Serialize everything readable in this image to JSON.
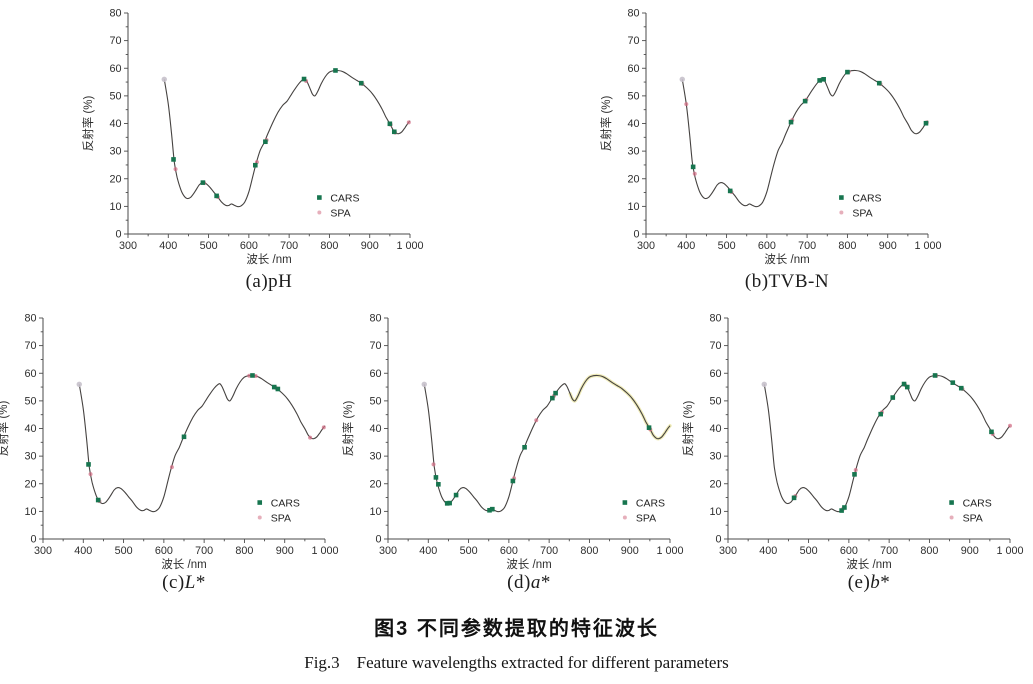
{
  "figure": {
    "caption_zh": "图3  不同参数提取的特征波长",
    "caption_en": "Fig.3　Feature wavelengths extracted for different parameters"
  },
  "legend": {
    "cars_label": "CARS",
    "spa_label": "SPA"
  },
  "colors": {
    "curve": "#454240",
    "cars": "#17754f",
    "spa": "#d26d84",
    "start_marker": "#c7c1cb",
    "highlight": "#e9e49b",
    "axis": "#4a4a4a",
    "text": "#2e2e2e"
  },
  "chart_data": {
    "type": "line",
    "xlabel": "波长 /nm",
    "ylabel": "反射率 (%)",
    "xlim": [
      300,
      1000
    ],
    "ylim": [
      0,
      80
    ],
    "grid": false,
    "legend_position": "inside lower right",
    "x_ticks": [
      "300",
      "400",
      "500",
      "600",
      "700",
      "800",
      "900",
      "1 000"
    ],
    "x_tick_values": [
      300,
      400,
      500,
      600,
      700,
      800,
      900,
      1000
    ],
    "y_ticks": [
      "0",
      "10",
      "20",
      "30",
      "40",
      "50",
      "60",
      "70",
      "80"
    ],
    "y_tick_values": [
      0,
      10,
      20,
      30,
      40,
      50,
      60,
      70,
      80
    ],
    "series_note": "All five panels share one reflectance spectrum curve; CARS (green squares) and SPA (pink dots) mark selected feature wavelengths.",
    "spectrum": [
      [
        390,
        56
      ],
      [
        400,
        47
      ],
      [
        408,
        36.5
      ],
      [
        415,
        26
      ],
      [
        422,
        20.5
      ],
      [
        430,
        16.5
      ],
      [
        438,
        14
      ],
      [
        446,
        12.9
      ],
      [
        455,
        13.2
      ],
      [
        466,
        15.3
      ],
      [
        477,
        17.8
      ],
      [
        486,
        18.6
      ],
      [
        494,
        18.2
      ],
      [
        504,
        16.8
      ],
      [
        514,
        15
      ],
      [
        522,
        13.6
      ],
      [
        532,
        11.6
      ],
      [
        542,
        10.4
      ],
      [
        550,
        10.3
      ],
      [
        557,
        10.9
      ],
      [
        565,
        10.3
      ],
      [
        573,
        9.9
      ],
      [
        581,
        10.2
      ],
      [
        590,
        11.6
      ],
      [
        600,
        15.3
      ],
      [
        610,
        21
      ],
      [
        618,
        25.5
      ],
      [
        628,
        30.2
      ],
      [
        638,
        33.1
      ],
      [
        648,
        36.6
      ],
      [
        660,
        40.5
      ],
      [
        672,
        44
      ],
      [
        684,
        46.6
      ],
      [
        695,
        48.1
      ],
      [
        705,
        50.4
      ],
      [
        715,
        52.6
      ],
      [
        725,
        54.6
      ],
      [
        733,
        55.8
      ],
      [
        739,
        56.2
      ],
      [
        745,
        55
      ],
      [
        752,
        52.6
      ],
      [
        758,
        50.6
      ],
      [
        764,
        50
      ],
      [
        771,
        51.6
      ],
      [
        780,
        54.5
      ],
      [
        790,
        57
      ],
      [
        800,
        58.6
      ],
      [
        810,
        59.1
      ],
      [
        820,
        59.2
      ],
      [
        831,
        58.9
      ],
      [
        843,
        58
      ],
      [
        856,
        56.7
      ],
      [
        868,
        55.6
      ],
      [
        880,
        54.5
      ],
      [
        893,
        52.9
      ],
      [
        906,
        50.9
      ],
      [
        918,
        48.4
      ],
      [
        930,
        45.4
      ],
      [
        940,
        42.4
      ],
      [
        950,
        39.9
      ],
      [
        958,
        37.7
      ],
      [
        965,
        36.6
      ],
      [
        972,
        36.3
      ],
      [
        980,
        37
      ],
      [
        988,
        38.6
      ],
      [
        995,
        40.1
      ],
      [
        1000,
        41
      ]
    ],
    "panels": [
      {
        "id": "a",
        "caption_pre": "(a)",
        "caption_italic": "",
        "caption_post": "pH",
        "start_point": [
          390,
          56
        ],
        "cars_points": [
          [
            413,
            27
          ],
          [
            486,
            18.6
          ],
          [
            520,
            13.8
          ],
          [
            616,
            24.9
          ],
          [
            641,
            33.4
          ],
          [
            737,
            56.1
          ],
          [
            815,
            59.2
          ],
          [
            879,
            54.6
          ],
          [
            950,
            39.9
          ],
          [
            961,
            37
          ]
        ],
        "spa_points": [
          [
            418,
            23.5
          ],
          [
            489,
            18.4
          ],
          [
            523,
            13.4
          ],
          [
            620,
            26
          ],
          [
            644,
            34
          ],
          [
            742,
            55.4
          ],
          [
            882,
            54.3
          ],
          [
            952,
            39.6
          ],
          [
            963,
            36.7
          ],
          [
            997,
            40.4
          ]
        ],
        "legend_x": 775,
        "highlight_from": null
      },
      {
        "id": "b",
        "caption_pre": "(b)",
        "caption_italic": "",
        "caption_post": "TVB-N",
        "start_point": [
          390,
          56
        ],
        "cars_points": [
          [
            417,
            24.3
          ],
          [
            509,
            15.6
          ],
          [
            660,
            40.5
          ],
          [
            695,
            48.1
          ],
          [
            731,
            55.6
          ],
          [
            741,
            56
          ],
          [
            800,
            58.6
          ],
          [
            879,
            54.6
          ],
          [
            995,
            40.1
          ]
        ],
        "spa_points": [
          [
            400,
            47
          ],
          [
            421,
            21.8
          ],
          [
            512,
            15.2
          ],
          [
            663,
            41.2
          ],
          [
            698,
            48.6
          ],
          [
            735,
            55.9
          ],
          [
            803,
            58.7
          ],
          [
            882,
            54.3
          ],
          [
            997,
            40.4
          ]
        ],
        "legend_x": 785,
        "highlight_from": null
      },
      {
        "id": "c",
        "caption_pre": "(c)",
        "caption_italic": "L",
        "caption_post": "*",
        "start_point": [
          390,
          56
        ],
        "cars_points": [
          [
            413,
            27
          ],
          [
            437,
            14.1
          ],
          [
            650,
            37
          ],
          [
            820,
            59.2
          ],
          [
            874,
            55
          ],
          [
            883,
            54.3
          ]
        ],
        "spa_points": [
          [
            418,
            23.5
          ],
          [
            440,
            13.7
          ],
          [
            620,
            26
          ],
          [
            812,
            59.1
          ],
          [
            828,
            59
          ],
          [
            878,
            54.7
          ],
          [
            963,
            36.7
          ],
          [
            997,
            40.4
          ]
        ],
        "legend_x": 838,
        "highlight_from": null
      },
      {
        "id": "d",
        "caption_pre": "(d)",
        "caption_italic": "a",
        "caption_post": "*",
        "start_point": [
          390,
          56
        ],
        "cars_points": [
          [
            419,
            22.3
          ],
          [
            425,
            19.8
          ],
          [
            447,
            12.9
          ],
          [
            453,
            13
          ],
          [
            469,
            15.9
          ],
          [
            552,
            10.4
          ],
          [
            559,
            10.8
          ],
          [
            610,
            21
          ],
          [
            639,
            33.2
          ],
          [
            708,
            51
          ],
          [
            716,
            52.8
          ],
          [
            948,
            40.3
          ]
        ],
        "spa_points": [
          [
            413,
            27
          ],
          [
            450,
            12.9
          ],
          [
            556,
            10.8
          ],
          [
            613,
            22
          ],
          [
            668,
            43
          ],
          [
            712,
            51.8
          ],
          [
            951,
            39.7
          ]
        ],
        "legend_x": 888,
        "highlight_from": 750
      },
      {
        "id": "e",
        "caption_pre": "(e)",
        "caption_italic": "b",
        "caption_post": "*",
        "start_point": [
          390,
          56
        ],
        "cars_points": [
          [
            464,
            14.9
          ],
          [
            582,
            10.3
          ],
          [
            589,
            11.4
          ],
          [
            614,
            23.4
          ],
          [
            679,
            45.2
          ],
          [
            709,
            51.2
          ],
          [
            737,
            56.1
          ],
          [
            745,
            55
          ],
          [
            814,
            59.2
          ],
          [
            858,
            56.6
          ],
          [
            879,
            54.6
          ],
          [
            954,
            38.8
          ]
        ],
        "spa_points": [
          [
            467,
            15.5
          ],
          [
            585,
            10.8
          ],
          [
            617,
            25
          ],
          [
            682,
            45.9
          ],
          [
            740,
            55.7
          ],
          [
            817,
            59.1
          ],
          [
            882,
            54.3
          ],
          [
            957,
            38
          ],
          [
            1000,
            41
          ]
        ],
        "legend_x": 855,
        "highlight_from": null
      }
    ]
  }
}
